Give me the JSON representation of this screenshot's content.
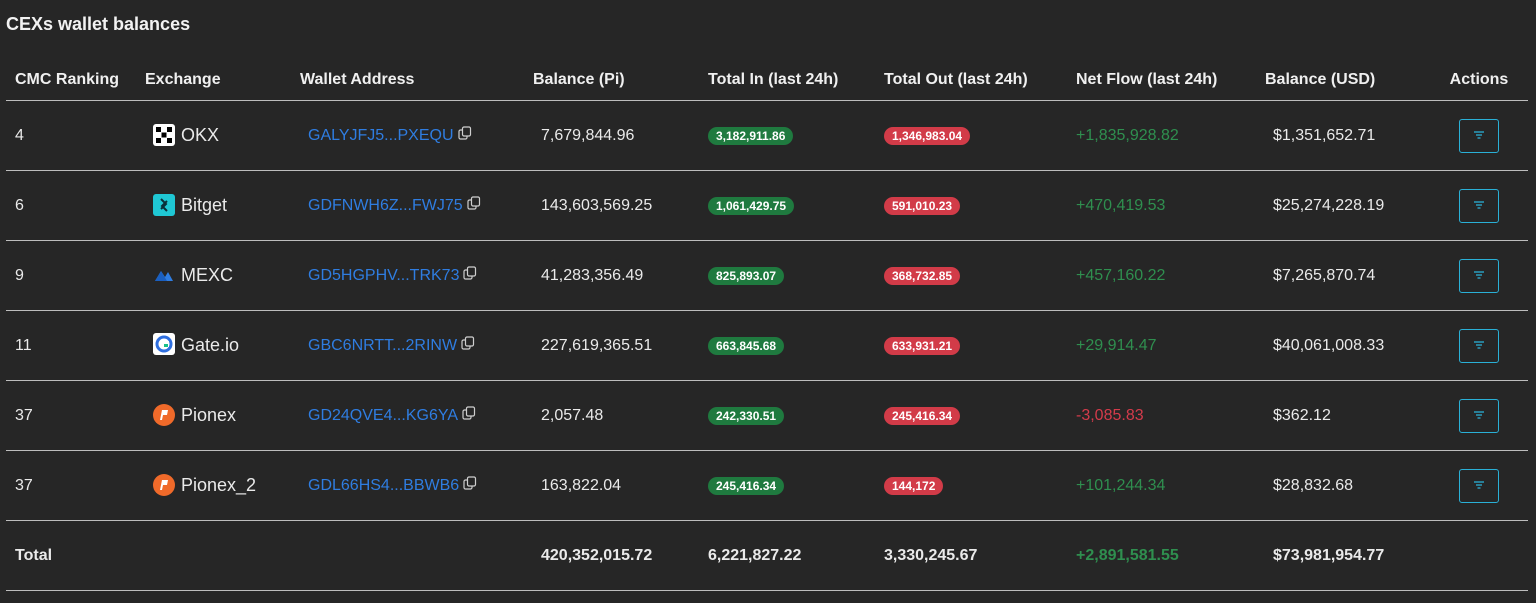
{
  "title": "CEXs wallet balances",
  "colors": {
    "positive": "#2f8f4f",
    "negative": "#d43b4b",
    "link": "#2f7de1",
    "action_border": "#2ab0d6"
  },
  "headers": {
    "rank": "CMC Ranking",
    "exchange": "Exchange",
    "wallet": "Wallet Address",
    "balance_pi": "Balance (Pi)",
    "total_in": "Total In (last 24h)",
    "total_out": "Total Out (last 24h)",
    "net_flow": "Net Flow (last 24h)",
    "balance_usd": "Balance (USD)",
    "actions": "Actions"
  },
  "rows": [
    {
      "rank": "4",
      "exchange": "OKX",
      "icon": "okx-logo-icon",
      "wallet": "GALYJFJ5...PXEQU",
      "balance_pi": "7,679,844.96",
      "total_in": "3,182,911.86",
      "total_out": "1,346,983.04",
      "net_flow": "+1,835,928.82",
      "net_sign": "positive",
      "balance_usd": "$1,351,652.71"
    },
    {
      "rank": "6",
      "exchange": "Bitget",
      "icon": "bitget-logo-icon",
      "wallet": "GDFNWH6Z...FWJ75",
      "balance_pi": "143,603,569.25",
      "total_in": "1,061,429.75",
      "total_out": "591,010.23",
      "net_flow": "+470,419.53",
      "net_sign": "positive",
      "balance_usd": "$25,274,228.19"
    },
    {
      "rank": "9",
      "exchange": "MEXC",
      "icon": "mexc-logo-icon",
      "wallet": "GD5HGPHV...TRK73",
      "balance_pi": "41,283,356.49",
      "total_in": "825,893.07",
      "total_out": "368,732.85",
      "net_flow": "+457,160.22",
      "net_sign": "positive",
      "balance_usd": "$7,265,870.74"
    },
    {
      "rank": "11",
      "exchange": "Gate.io",
      "icon": "gateio-logo-icon",
      "wallet": "GBC6NRTT...2RINW",
      "balance_pi": "227,619,365.51",
      "total_in": "663,845.68",
      "total_out": "633,931.21",
      "net_flow": "+29,914.47",
      "net_sign": "positive",
      "balance_usd": "$40,061,008.33"
    },
    {
      "rank": "37",
      "exchange": "Pionex",
      "icon": "pionex-logo-icon",
      "wallet": "GD24QVE4...KG6YA",
      "balance_pi": "2,057.48",
      "total_in": "242,330.51",
      "total_out": "245,416.34",
      "net_flow": "-3,085.83",
      "net_sign": "negative",
      "balance_usd": "$362.12"
    },
    {
      "rank": "37",
      "exchange": "Pionex_2",
      "icon": "pionex-logo-icon",
      "wallet": "GDL66HS4...BBWB6",
      "balance_pi": "163,822.04",
      "total_in": "245,416.34",
      "total_out": "144,172",
      "net_flow": "+101,244.34",
      "net_sign": "positive",
      "balance_usd": "$28,832.68"
    }
  ],
  "total": {
    "label": "Total",
    "balance_pi": "420,352,015.72",
    "total_in": "6,221,827.22",
    "total_out": "3,330,245.67",
    "net_flow": "+2,891,581.55",
    "balance_usd": "$73,981,954.77"
  }
}
